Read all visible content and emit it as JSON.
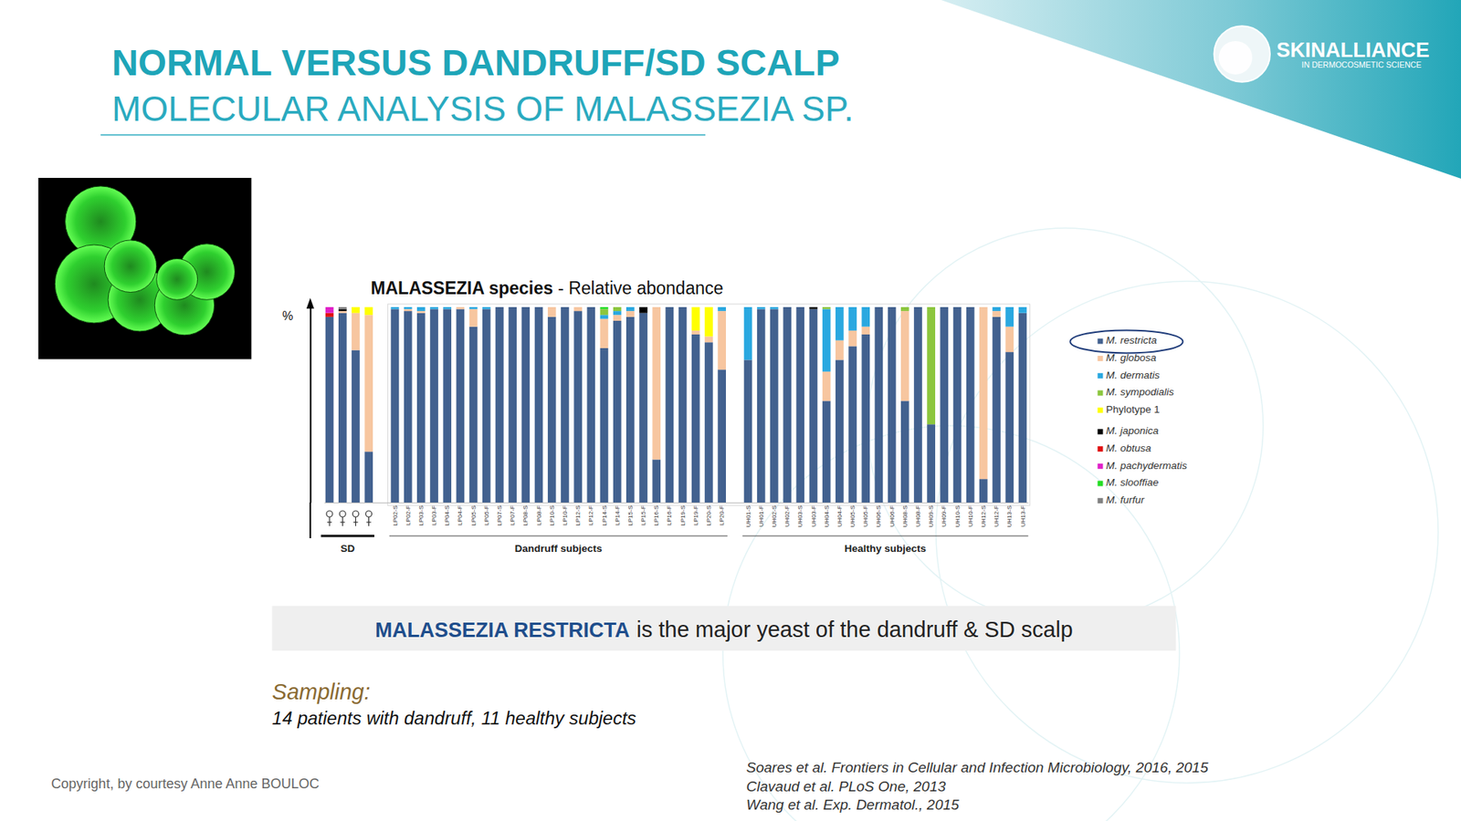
{
  "header": {
    "title": "NORMAL VERSUS DANDRUFF/SD SCALP",
    "subtitle": "MOLECULAR ANALYSIS OF MALASSEZIA SP."
  },
  "logo": {
    "name": "SKINALLIANCE",
    "tagline": "IN DERMOCOSMETIC SCIENCE"
  },
  "chart_data": {
    "type": "bar",
    "title": "MALASSEZIA species - Relative abondance",
    "y_label": "%",
    "stacked": true,
    "legend": "right",
    "tick_labels": "x",
    "ylim": [
      0,
      100
    ],
    "yticks": [],
    "groups": [
      {
        "name": "SD",
        "size": 4
      },
      {
        "name": "Dandruff subjects",
        "size": 26
      },
      {
        "name": "Healthy subjects",
        "size": 22
      }
    ],
    "categories": [
      null,
      null,
      null,
      null,
      "LP02-S",
      "LP02-F",
      "LP03-S",
      "LP03-F",
      "LP04-S",
      "LP04-F",
      "LP05-S",
      "LP05-F",
      "LP07-S",
      "LP07-F",
      "LP08-S",
      "LP08-F",
      "LP10-S",
      "LP10-F",
      "LP12-S",
      "LP12-F",
      "LP14-S",
      "LP14-F",
      "LP15-S",
      "LP15-F",
      "LP16-S",
      "LP16-F",
      "LP19-S",
      "LP19-F",
      "LP20-S",
      "LP20-F",
      "UH01-S",
      "UH01-F",
      "UH02-S",
      "UH02-F",
      "UH03-S",
      "UH03-F",
      "UH04-S",
      "UH04-F",
      "UH05-S",
      "UH05-F",
      "UH06-S",
      "UH06-F",
      "UH08-S",
      "UH08-F",
      "UH09-S",
      "UH09-F",
      "UH10-S",
      "UH10-F",
      "UH12-S",
      "UH12-F",
      "UH13-S",
      "UH13-F"
    ],
    "series": [
      {
        "name": "M. restricta",
        "color": "#42618f",
        "values": [
          95,
          97,
          78,
          26,
          99,
          98,
          97,
          99,
          99,
          99,
          90,
          99,
          100,
          100,
          100,
          100,
          95,
          100,
          98,
          100,
          79,
          93,
          95,
          97,
          22,
          100,
          100,
          86,
          82,
          68,
          73,
          99,
          99,
          100,
          100,
          99,
          52,
          73,
          80,
          86,
          100,
          100,
          52,
          100,
          40,
          100,
          100,
          100,
          12,
          95,
          77,
          97
        ]
      },
      {
        "name": "M. globosa",
        "color": "#f7c6a0",
        "values": [
          0,
          1,
          19,
          70,
          0,
          1,
          1,
          0,
          0,
          1,
          9,
          0,
          0,
          0,
          0,
          0,
          5,
          0,
          2,
          0,
          15,
          3,
          3,
          0,
          78,
          0,
          0,
          2,
          3,
          30,
          0,
          0,
          0,
          0,
          0,
          0,
          15,
          10,
          8,
          4,
          0,
          0,
          46,
          0,
          0,
          0,
          0,
          0,
          88,
          3,
          13,
          0
        ]
      },
      {
        "name": "M. dermatis",
        "color": "#2aa8e0",
        "values": [
          0,
          0,
          0,
          0,
          1,
          1,
          2,
          1,
          1,
          0,
          1,
          1,
          0,
          0,
          0,
          0,
          0,
          0,
          0,
          0,
          2,
          2,
          2,
          0,
          0,
          0,
          0,
          0,
          0,
          2,
          27,
          1,
          1,
          0,
          0,
          0,
          32,
          17,
          12,
          10,
          0,
          0,
          0,
          0,
          0,
          0,
          0,
          0,
          0,
          2,
          10,
          3
        ]
      },
      {
        "name": "M. sympodialis",
        "color": "#8cc63e",
        "values": [
          0,
          0,
          0,
          0,
          0,
          0,
          0,
          0,
          0,
          0,
          0,
          0,
          0,
          0,
          0,
          0,
          0,
          0,
          0,
          0,
          3,
          2,
          0,
          0,
          0,
          0,
          0,
          0,
          0,
          0,
          0,
          0,
          0,
          0,
          0,
          0,
          1,
          0,
          0,
          0,
          0,
          0,
          2,
          0,
          60,
          0,
          0,
          0,
          0,
          0,
          0,
          0
        ]
      },
      {
        "name": "Phylotype 1",
        "color": "#ffff00",
        "values": [
          0,
          0,
          3,
          4,
          0,
          0,
          0,
          0,
          0,
          0,
          0,
          0,
          0,
          0,
          0,
          0,
          0,
          0,
          0,
          0,
          0,
          0,
          0,
          0,
          0,
          0,
          0,
          12,
          15,
          0,
          0,
          0,
          0,
          0,
          0,
          0,
          0,
          0,
          0,
          0,
          0,
          0,
          0,
          0,
          0,
          0,
          0,
          0,
          0,
          0,
          0,
          0
        ]
      },
      {
        "name": "M. japonica",
        "color": "#000000",
        "values": [
          0,
          1,
          0,
          0,
          0,
          0,
          0,
          0,
          0,
          0,
          0,
          0,
          0,
          0,
          0,
          0,
          0,
          0,
          0,
          0,
          0,
          0,
          0,
          3,
          0,
          0,
          0,
          0,
          0,
          0,
          0,
          0,
          0,
          0,
          0,
          1,
          0,
          0,
          0,
          0,
          0,
          0,
          0,
          0,
          0,
          0,
          0,
          0,
          0,
          0,
          0,
          0
        ]
      },
      {
        "name": "M. obtusa",
        "color": "#e01010",
        "values": [
          2,
          0,
          0,
          0,
          0,
          0,
          0,
          0,
          0,
          0,
          0,
          0,
          0,
          0,
          0,
          0,
          0,
          0,
          0,
          0,
          0,
          0,
          0,
          0,
          0,
          0,
          0,
          0,
          0,
          0,
          0,
          0,
          0,
          0,
          0,
          0,
          0,
          0,
          0,
          0,
          0,
          0,
          0,
          0,
          0,
          0,
          0,
          0,
          0,
          0,
          0,
          0
        ]
      },
      {
        "name": "M. pachydermatis",
        "color": "#e020c8",
        "values": [
          3,
          0,
          0,
          0,
          0,
          0,
          0,
          0,
          0,
          0,
          0,
          0,
          0,
          0,
          0,
          0,
          0,
          0,
          0,
          0,
          0,
          0,
          0,
          0,
          0,
          0,
          0,
          0,
          0,
          0,
          0,
          0,
          0,
          0,
          0,
          0,
          0,
          0,
          0,
          0,
          0,
          0,
          0,
          0,
          0,
          0,
          0,
          0,
          0,
          0,
          0,
          0
        ]
      },
      {
        "name": "M. slooffiae",
        "color": "#22dd22",
        "values": [
          0,
          0,
          0,
          0,
          0,
          0,
          0,
          0,
          0,
          0,
          0,
          0,
          0,
          0,
          0,
          0,
          0,
          0,
          0,
          0,
          1,
          0,
          0,
          0,
          0,
          0,
          0,
          0,
          0,
          0,
          0,
          0,
          0,
          0,
          0,
          0,
          0,
          0,
          0,
          0,
          0,
          0,
          0,
          0,
          0,
          0,
          0,
          0,
          0,
          0,
          0,
          0
        ]
      },
      {
        "name": "M. furfur",
        "color": "#808080",
        "values": [
          0,
          1,
          0,
          0,
          0,
          0,
          0,
          0,
          0,
          0,
          0,
          0,
          0,
          0,
          0,
          0,
          0,
          0,
          0,
          0,
          0,
          0,
          0,
          0,
          0,
          0,
          0,
          0,
          0,
          0,
          0,
          0,
          0,
          0,
          0,
          0,
          0,
          0,
          0,
          0,
          0,
          0,
          0,
          0,
          0,
          0,
          0,
          0,
          0,
          0,
          0,
          0
        ]
      }
    ]
  },
  "caption": {
    "highlight": "MALASSEZIA RESTRICTA",
    "text": "is the major yeast of the dandruff & SD scalp"
  },
  "sampling": {
    "label": "Sampling:",
    "text": "14 patients with dandruff, 11 healthy subjects"
  },
  "references": [
    "Soares et al. Frontiers in Cellular and Infection Microbiology, 2016, 2015",
    "Clavaud et al. PLoS One, 2013",
    "Wang et al. Exp. Dermatol., 2015"
  ],
  "copyright": "Copyright, by courtesy Anne Anne BOULOC"
}
